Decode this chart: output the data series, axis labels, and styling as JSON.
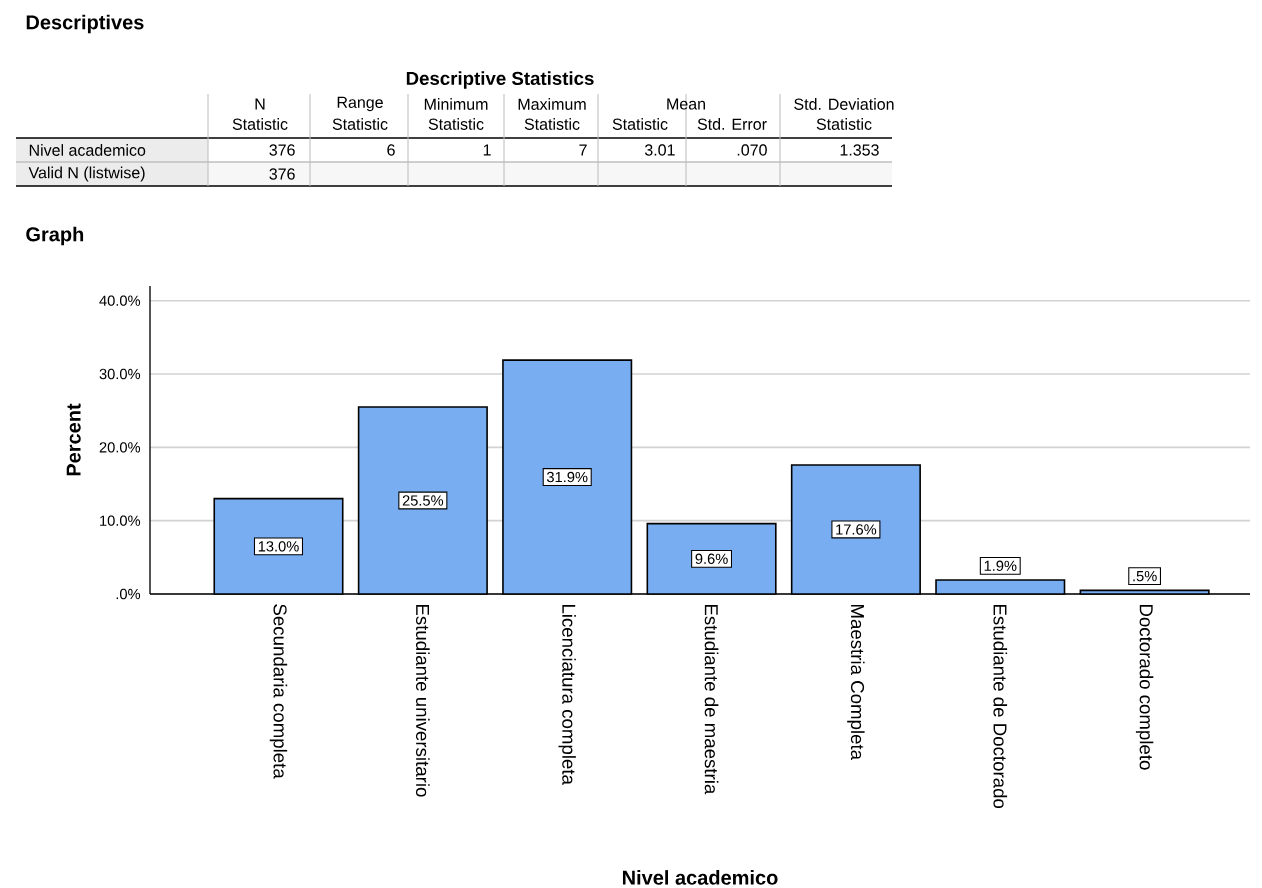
{
  "chart_data": [
    {
      "type": "other",
      "title": "Descriptives",
      "subtitle": "Descriptive Statistics",
      "annotations": [
        "N",
        "Range",
        "Minimum",
        "Maximum",
        "Mean",
        "Std. Deviation",
        "Statistic",
        "Statistic",
        "Statistic",
        "Statistic",
        "Statistic",
        "Std. Error",
        "Statistic",
        "Nivel academico",
        "376",
        "6",
        "1",
        "7",
        "3.01",
        ".070",
        "1.353",
        "Valid N (listwise)",
        "376"
      ]
    },
    {
      "type": "bar",
      "title": "Graph",
      "xlabel": "Nivel academico",
      "ylabel": "Percent",
      "categories": [
        "Secundaria completa",
        "Estudiante universitario",
        "Licenciatura completa",
        "Estudiante de maestria",
        "Maestria Completa",
        "Estudiante de Doctorado",
        "Doctorado completo"
      ],
      "values": [
        13.0,
        25.5,
        31.9,
        9.6,
        17.6,
        1.9,
        0.5
      ],
      "value_labels": [
        "13.0%",
        "25.5%",
        "31.9%",
        "9.6%",
        "17.6%",
        "1.9%",
        ".5%"
      ],
      "color": "#78adf2",
      "ylim": [
        0,
        42
      ],
      "yticks": [
        {
          "value": 0,
          "label": ".0%"
        },
        {
          "value": 10,
          "label": "10.0%"
        },
        {
          "value": 20,
          "label": "20.0%"
        },
        {
          "value": 30,
          "label": "30.0%"
        },
        {
          "value": 40,
          "label": "40.0%"
        }
      ],
      "grid": "y"
    }
  ]
}
